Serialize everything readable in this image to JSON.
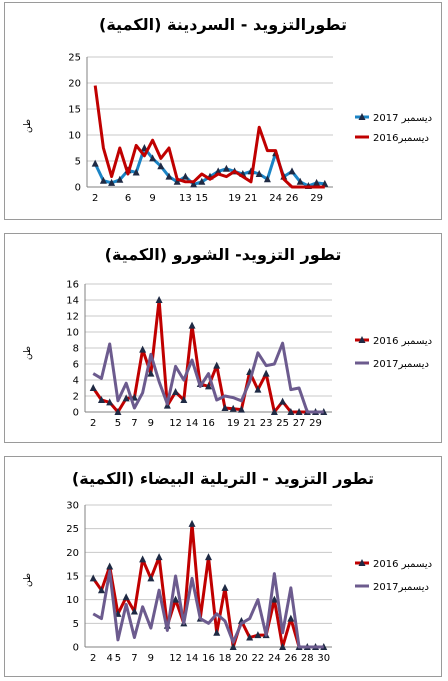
{
  "chart_data": [
    {
      "type": "line",
      "title": "تطورالتزويد - السردينة (الكمية)",
      "ylabel": "طن",
      "ylim": [
        0,
        25
      ],
      "yticks": [
        0,
        5,
        10,
        15,
        20,
        25
      ],
      "xlim": [
        1,
        31
      ],
      "xticks": [
        2,
        6,
        9,
        13,
        15,
        19,
        21,
        24,
        26,
        29
      ],
      "grid": "horizontal",
      "legend_placement": "right",
      "series": [
        {
          "name": "ديسمبر 2017",
          "color": "#1b84c5",
          "marker": "triangle",
          "x": [
            2,
            3,
            4,
            5,
            6,
            7,
            8,
            9,
            10,
            11,
            12,
            13,
            14,
            15,
            16,
            17,
            18,
            19,
            20,
            21,
            22,
            23,
            24,
            25,
            26,
            27,
            28,
            29,
            30
          ],
          "values": [
            4.5,
            1.2,
            0.8,
            1.4,
            3.2,
            2.8,
            7.5,
            5.5,
            4.0,
            2.0,
            1.0,
            2.0,
            0.5,
            1.0,
            2.0,
            3.0,
            3.5,
            3.0,
            2.5,
            3.0,
            2.5,
            1.5,
            6.5,
            2.0,
            3.0,
            1.0,
            0.2,
            0.8,
            0.6
          ],
          "marker_x": [
            2,
            4,
            5,
            6,
            7,
            8,
            9,
            10,
            12,
            13,
            14,
            15,
            16,
            18,
            19,
            20,
            21,
            22,
            23,
            25,
            26,
            27,
            28,
            29,
            30,
            31
          ]
        },
        {
          "name": "ديسمبر2016",
          "color": "#c00000",
          "marker": "none",
          "x": [
            2,
            3,
            4,
            5,
            6,
            7,
            8,
            9,
            10,
            11,
            12,
            13,
            14,
            15,
            16,
            17,
            18,
            19,
            20,
            21,
            22,
            23,
            24,
            25,
            26,
            27,
            28,
            29,
            30
          ],
          "values": [
            19.5,
            7.5,
            2.0,
            7.5,
            2.5,
            8.0,
            6.0,
            9.0,
            5.5,
            7.5,
            1.5,
            1.0,
            1.0,
            2.5,
            1.5,
            2.5,
            2.0,
            3.0,
            2.0,
            1.0,
            11.5,
            7.0,
            7.0,
            1.5,
            0.0,
            0.0,
            0.0,
            0.0,
            0.0
          ]
        }
      ]
    },
    {
      "type": "line",
      "title": "تطور التزويد- الشورو (الكمية)",
      "ylabel": "طن",
      "ylim": [
        0,
        16
      ],
      "yticks": [
        0,
        2,
        4,
        6,
        8,
        10,
        12,
        14,
        16
      ],
      "xlim": [
        1,
        31
      ],
      "xticks": [
        2,
        5,
        7,
        9,
        12,
        14,
        16,
        19,
        21,
        23,
        25,
        27,
        29
      ],
      "grid": "horizontal",
      "legend_placement": "right",
      "series": [
        {
          "name": "ديسمبر 2016",
          "color": "#c00000",
          "marker": "triangle",
          "x": [
            2,
            3,
            4,
            5,
            6,
            7,
            8,
            9,
            10,
            11,
            12,
            13,
            14,
            15,
            16,
            17,
            18,
            19,
            20,
            21,
            22,
            23,
            24,
            25,
            26,
            27,
            28,
            29,
            30
          ],
          "values": [
            3.0,
            1.5,
            1.2,
            0.0,
            1.7,
            1.8,
            7.8,
            4.8,
            14.0,
            0.8,
            2.5,
            1.5,
            10.8,
            3.5,
            3.2,
            5.8,
            0.5,
            0.4,
            0.3,
            5.0,
            2.8,
            4.8,
            0.0,
            1.3,
            0.0,
            0.0,
            0.0,
            0.0,
            0.0
          ]
        },
        {
          "name": "ديسمبر2017",
          "color": "#6c5b8e",
          "marker": "none",
          "x": [
            2,
            3,
            4,
            5,
            6,
            7,
            8,
            9,
            10,
            11,
            12,
            13,
            14,
            15,
            16,
            17,
            18,
            19,
            20,
            21,
            22,
            23,
            24,
            25,
            26,
            27,
            28,
            29,
            30
          ],
          "values": [
            4.8,
            4.2,
            8.5,
            1.4,
            3.6,
            0.5,
            2.4,
            7.2,
            3.8,
            1.0,
            5.7,
            4.0,
            6.5,
            3.2,
            4.8,
            1.5,
            2.0,
            1.8,
            1.4,
            3.8,
            7.4,
            5.8,
            6.0,
            8.6,
            2.8,
            3.0,
            0.0,
            0.0,
            0.0
          ]
        }
      ]
    },
    {
      "type": "line",
      "title": "تطور التزويد - التريلية البيضاء (الكمية)",
      "ylabel": "طن",
      "ylim": [
        0,
        30
      ],
      "yticks": [
        0,
        5,
        10,
        15,
        20,
        25,
        30
      ],
      "xlim": [
        1,
        31
      ],
      "xticks": [
        2,
        4,
        5,
        7,
        9,
        12,
        14,
        16,
        18,
        20,
        22,
        24,
        26,
        28,
        30
      ],
      "grid": "horizontal",
      "legend_placement": "right",
      "series": [
        {
          "name": "ديسمبر 2016",
          "color": "#c00000",
          "marker": "triangle",
          "x": [
            2,
            3,
            4,
            5,
            6,
            7,
            8,
            9,
            10,
            11,
            12,
            13,
            14,
            15,
            16,
            17,
            18,
            19,
            20,
            21,
            22,
            23,
            24,
            25,
            26,
            27,
            28,
            29,
            30
          ],
          "values": [
            14.5,
            12.0,
            17.0,
            7.0,
            10.5,
            7.5,
            18.5,
            14.5,
            19.0,
            4.5,
            10.0,
            5.0,
            26.0,
            6.0,
            19.0,
            3.0,
            12.5,
            0.0,
            5.5,
            2.0,
            2.5,
            2.5,
            10.0,
            0.0,
            6.0,
            0.0,
            0.0,
            0.0,
            0.0
          ]
        },
        {
          "name": "ديسمبر2017",
          "color": "#6c5b8e",
          "marker": "none",
          "x": [
            2,
            3,
            4,
            5,
            6,
            7,
            8,
            9,
            10,
            11,
            12,
            13,
            14,
            15,
            16,
            17,
            18,
            19,
            20,
            21,
            22,
            23,
            24,
            25,
            26,
            27,
            28,
            29,
            30
          ],
          "values": [
            7.0,
            6.0,
            16.0,
            1.5,
            9.0,
            2.0,
            8.5,
            4.0,
            12.0,
            3.5,
            15.0,
            5.0,
            14.5,
            6.0,
            5.0,
            7.0,
            5.5,
            1.0,
            5.0,
            6.0,
            10.0,
            2.5,
            15.5,
            3.0,
            12.5,
            0.0,
            0.0,
            0.0,
            0.0
          ]
        }
      ]
    }
  ]
}
